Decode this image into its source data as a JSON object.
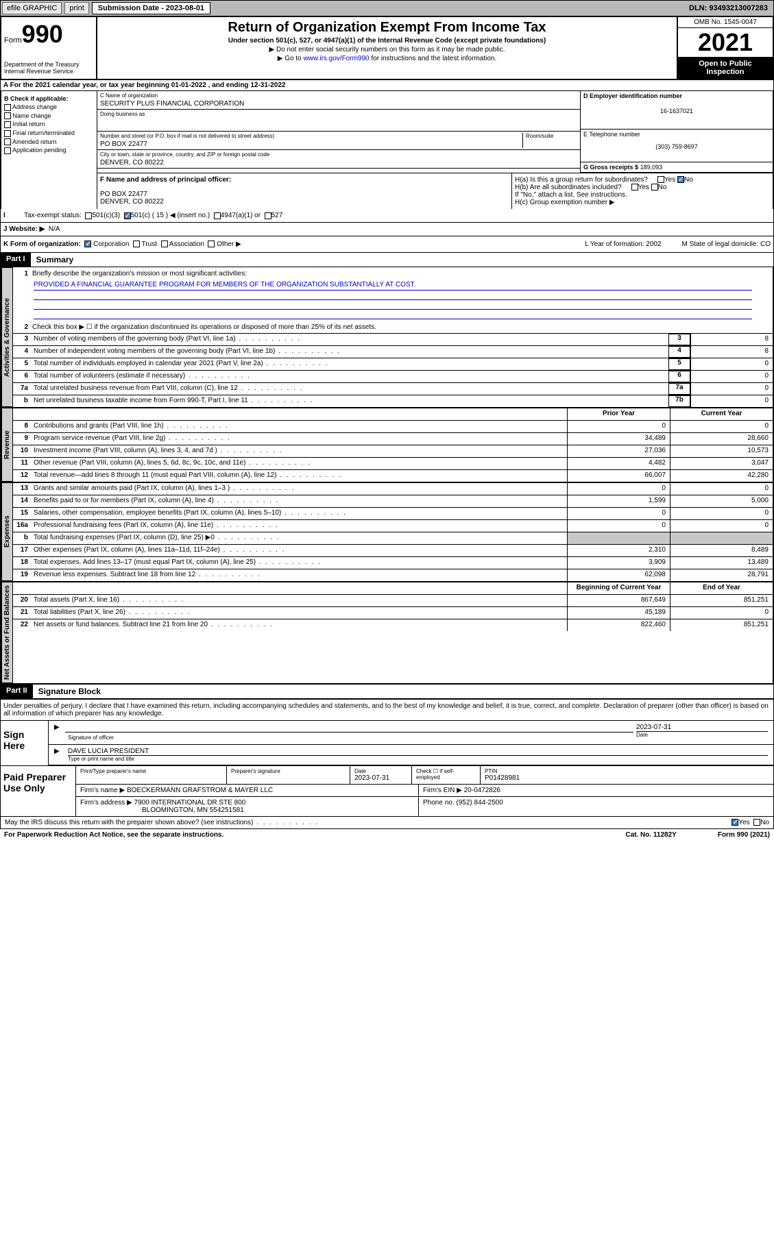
{
  "topbar": {
    "efile": "efile GRAPHIC",
    "print": "print",
    "sub_label": "Submission Date - 2023-08-01",
    "dln": "DLN: 93493213007283"
  },
  "header": {
    "form_word": "Form",
    "form_num": "990",
    "dept": "Department of the Treasury\nInternal Revenue Service",
    "title": "Return of Organization Exempt From Income Tax",
    "subtitle": "Under section 501(c), 527, or 4947(a)(1) of the Internal Revenue Code (except private foundations)",
    "note1": "▶ Do not enter social security numbers on this form as it may be made public.",
    "note2_pre": "▶ Go to ",
    "note2_link": "www.irs.gov/Form990",
    "note2_post": " for instructions and the latest information.",
    "omb": "OMB No. 1545-0047",
    "year": "2021",
    "open": "Open to Public Inspection"
  },
  "row_a": "A For the 2021 calendar year, or tax year beginning 01-01-2022    , and ending 12-31-2022",
  "col_b": {
    "title": "B Check if applicable:",
    "items": [
      "Address change",
      "Name change",
      "Initial return",
      "Final return/terminated",
      "Amended return",
      "Application pending"
    ]
  },
  "col_c": {
    "name_lbl": "C Name of organization",
    "name": "SECURITY PLUS FINANCIAL CORPORATION",
    "dba_lbl": "Doing business as",
    "dba": "",
    "addr_lbl": "Number and street (or P.O. box if mail is not delivered to street address)",
    "room_lbl": "Room/suite",
    "addr": "PO BOX 22477",
    "city_lbl": "City or town, state or province, country, and ZIP or foreign postal code",
    "city": "DENVER, CO  80222"
  },
  "col_d": {
    "ein_lbl": "D Employer identification number",
    "ein": "16-1637021",
    "tel_lbl": "E Telephone number",
    "tel": "(303) 759-8697",
    "gross_lbl": "G Gross receipts $",
    "gross": "189,093"
  },
  "row_f": {
    "f_lbl": "F Name and address of principal officer:",
    "f_addr": "PO BOX 22477\nDENVER, CO  80222",
    "ha": "H(a)  Is this a group return for subordinates?",
    "hb": "H(b)  Are all subordinates included?",
    "hb_note": "If \"No,\" attach a list. See instructions.",
    "hc": "H(c)  Group exemption number ▶"
  },
  "row_i": {
    "lbl": "Tax-exempt status:",
    "opts": [
      "501(c)(3)",
      "501(c) ( 15 ) ◀ (insert no.)",
      "4947(a)(1) or",
      "527"
    ]
  },
  "row_j": {
    "lbl": "J   Website: ▶",
    "val": "N/A"
  },
  "row_k": {
    "k_lbl": "K Form of organization:",
    "opts": [
      "Corporation",
      "Trust",
      "Association",
      "Other ▶"
    ],
    "l": "L Year of formation: 2002",
    "m": "M State of legal domicile: CO"
  },
  "part1": {
    "hdr": "Part I",
    "title": "Summary"
  },
  "summary": {
    "q1": "Briefly describe the organization's mission or most significant activities:",
    "mission": "PROVIDED A FINANCIAL GUARANTEE PROGRAM FOR MEMBERS OF THE ORGANIZATION SUBSTANTIALLY AT COST.",
    "q2": "Check this box ▶ ☐  if the organization discontinued its operations or disposed of more than 25% of its net assets.",
    "lines_gov": [
      {
        "n": "3",
        "t": "Number of voting members of the governing body (Part VI, line 1a)",
        "box": "3",
        "v": "8"
      },
      {
        "n": "4",
        "t": "Number of independent voting members of the governing body (Part VI, line 1b)",
        "box": "4",
        "v": "8"
      },
      {
        "n": "5",
        "t": "Total number of individuals employed in calendar year 2021 (Part V, line 2a)",
        "box": "5",
        "v": "0"
      },
      {
        "n": "6",
        "t": "Total number of volunteers (estimate if necessary)",
        "box": "6",
        "v": "0"
      },
      {
        "n": "7a",
        "t": "Total unrelated business revenue from Part VIII, column (C), line 12",
        "box": "7a",
        "v": "0"
      },
      {
        "n": "b",
        "t": "Net unrelated business taxable income from Form 990-T, Part I, line 11",
        "box": "7b",
        "v": "0"
      }
    ],
    "col_hdr1": "Prior Year",
    "col_hdr2": "Current Year",
    "revenue": [
      {
        "n": "8",
        "t": "Contributions and grants (Part VIII, line 1h)",
        "c1": "0",
        "c2": "0"
      },
      {
        "n": "9",
        "t": "Program service revenue (Part VIII, line 2g)",
        "c1": "34,489",
        "c2": "28,660"
      },
      {
        "n": "10",
        "t": "Investment income (Part VIII, column (A), lines 3, 4, and 7d )",
        "c1": "27,036",
        "c2": "10,573"
      },
      {
        "n": "11",
        "t": "Other revenue (Part VIII, column (A), lines 5, 6d, 8c, 9c, 10c, and 11e)",
        "c1": "4,482",
        "c2": "3,047"
      },
      {
        "n": "12",
        "t": "Total revenue—add lines 8 through 11 (must equal Part VIII, column (A), line 12)",
        "c1": "66,007",
        "c2": "42,280"
      }
    ],
    "expenses": [
      {
        "n": "13",
        "t": "Grants and similar amounts paid (Part IX, column (A), lines 1–3 )",
        "c1": "0",
        "c2": "0"
      },
      {
        "n": "14",
        "t": "Benefits paid to or for members (Part IX, column (A), line 4)",
        "c1": "1,599",
        "c2": "5,000"
      },
      {
        "n": "15",
        "t": "Salaries, other compensation, employee benefits (Part IX, column (A), lines 5–10)",
        "c1": "0",
        "c2": "0"
      },
      {
        "n": "16a",
        "t": "Professional fundraising fees (Part IX, column (A), line 11e)",
        "c1": "0",
        "c2": "0"
      },
      {
        "n": "b",
        "t": "Total fundraising expenses (Part IX, column (D), line 25) ▶0",
        "c1": "",
        "c2": "",
        "shade": true
      },
      {
        "n": "17",
        "t": "Other expenses (Part IX, column (A), lines 11a–11d, 11f–24e)",
        "c1": "2,310",
        "c2": "8,489"
      },
      {
        "n": "18",
        "t": "Total expenses. Add lines 13–17 (must equal Part IX, column (A), line 25)",
        "c1": "3,909",
        "c2": "13,489"
      },
      {
        "n": "19",
        "t": "Revenue less expenses. Subtract line 18 from line 12",
        "c1": "62,098",
        "c2": "28,791"
      }
    ],
    "na_hdr1": "Beginning of Current Year",
    "na_hdr2": "End of Year",
    "netassets": [
      {
        "n": "20",
        "t": "Total assets (Part X, line 16)",
        "c1": "867,649",
        "c2": "851,251"
      },
      {
        "n": "21",
        "t": "Total liabilities (Part X, line 26)",
        "c1": "45,189",
        "c2": "0"
      },
      {
        "n": "22",
        "t": "Net assets or fund balances. Subtract line 21 from line 20",
        "c1": "822,460",
        "c2": "851,251"
      }
    ]
  },
  "vtabs": {
    "gov": "Activities & Governance",
    "rev": "Revenue",
    "exp": "Expenses",
    "na": "Net Assets or Fund Balances"
  },
  "part2": {
    "hdr": "Part II",
    "title": "Signature Block"
  },
  "sig": {
    "decl": "Under penalties of perjury, I declare that I have examined this return, including accompanying schedules and statements, and to the best of my knowledge and belief, it is true, correct, and complete. Declaration of preparer (other than officer) is based on all information of which preparer has any knowledge.",
    "sign_here": "Sign Here",
    "sig_officer": "Signature of officer",
    "date": "2023-07-31",
    "date_lbl": "Date",
    "name": "DAVE LUCIA  PRESIDENT",
    "name_lbl": "Type or print name and title"
  },
  "paid": {
    "lbl": "Paid Preparer Use Only",
    "h1": "Print/Type preparer's name",
    "h2": "Preparer's signature",
    "h3": "Date",
    "h3v": "2023-07-31",
    "h4": "Check ☐ if self-employed",
    "h5": "PTIN",
    "h5v": "P01428981",
    "firm_lbl": "Firm's name      ▶",
    "firm": "BOECKERMANN GRAFSTROM & MAYER LLC",
    "ein_lbl": "Firm's EIN ▶",
    "ein": "20-0472826",
    "addr_lbl": "Firm's address ▶",
    "addr1": "7900 INTERNATIONAL DR STE 800",
    "addr2": "BLOOMINGTON, MN  554251581",
    "phone_lbl": "Phone no.",
    "phone": "(952) 844-2500"
  },
  "foot": {
    "q": "May the IRS discuss this return with the preparer shown above? (see instructions)",
    "yes": "Yes",
    "no": "No",
    "pra": "For Paperwork Reduction Act Notice, see the separate instructions.",
    "cat": "Cat. No. 11282Y",
    "form": "Form 990 (2021)"
  }
}
